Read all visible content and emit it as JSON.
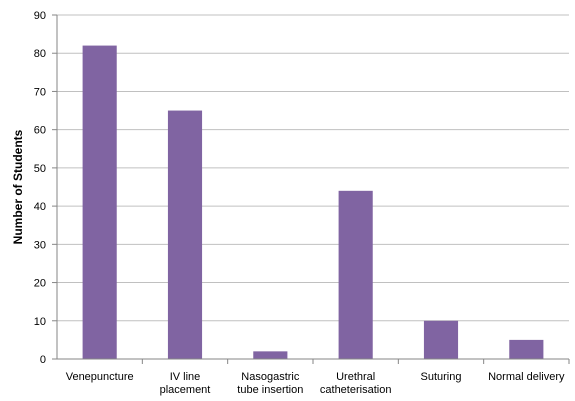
{
  "chart_data": {
    "type": "bar",
    "title": "",
    "xlabel": "",
    "ylabel": "Number of Students",
    "ylim": [
      0,
      90
    ],
    "yticks": [
      0,
      10,
      20,
      30,
      40,
      50,
      60,
      70,
      80,
      90
    ],
    "grid": "horizontal",
    "legend": "none",
    "categories": [
      [
        "Venepuncture"
      ],
      [
        "IV line",
        "placement"
      ],
      [
        "Nasogastric",
        "tube insertion"
      ],
      [
        "Urethral",
        "catheterisation"
      ],
      [
        "Suturing"
      ],
      [
        "Normal delivery"
      ]
    ],
    "values": [
      82,
      65,
      2,
      44,
      10,
      5
    ],
    "colors": {
      "bar": "#8064a2",
      "grid": "#c0c0c0",
      "axis": "#868686"
    }
  }
}
